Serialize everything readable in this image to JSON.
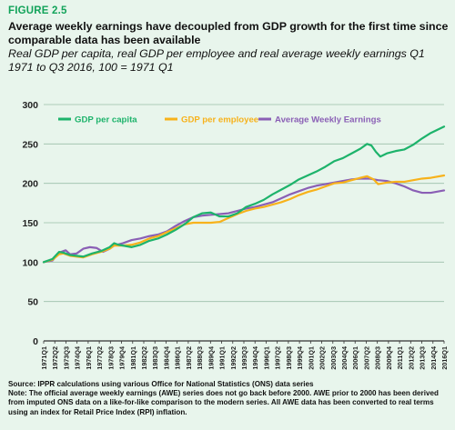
{
  "header": {
    "figure_label": "FIGURE 2.5",
    "title": "Average weekly earnings have decoupled from GDP growth for the first time since comparable data has been available",
    "subtitle": "Real GDP per capita, real GDP per employee and real average weekly earnings Q1 1971 to Q3 2016, 100 = 1971 Q1"
  },
  "footer": {
    "source": "Source: IPPR calculations using various Office for National Statistics (ONS) data series",
    "note": "Note: The official average weekly earnings (AWE) series does not go back before 2000. AWE prior to 2000 has been derived from imputed ONS data on a like-for-like comparison to the modern series. All AWE data has been converted to real terms using an index for Retail Price Index (RPI) inflation."
  },
  "colors": {
    "gdp_per_capita": "#1db36b",
    "gdp_per_employee": "#f7b21b",
    "awe": "#8a5fb5",
    "grid": "#9bbfa9"
  },
  "chart_data": {
    "type": "line",
    "title": "",
    "xlabel": "",
    "ylabel": "",
    "ylim": [
      0,
      300
    ],
    "yticks": [
      0,
      50,
      100,
      150,
      200,
      250,
      300
    ],
    "grid": "horizontal",
    "legend_placement": "top",
    "x_tick_labels": [
      "1971Q1",
      "1972Q2",
      "1973Q3",
      "1974Q4",
      "1976Q1",
      "1977Q2",
      "1978Q3",
      "1979Q4",
      "1981Q1",
      "1982Q2",
      "1983Q3",
      "1984Q4",
      "1986Q1",
      "1987Q2",
      "1988Q3",
      "1989Q4",
      "1991Q1",
      "1992Q2",
      "1993Q3",
      "1994Q4",
      "1996Q1",
      "1997Q2",
      "1998Q3",
      "1999Q4",
      "2001Q1",
      "2002Q2",
      "2003Q3",
      "2004Q4",
      "2006Q1",
      "2007Q2",
      "2008Q3",
      "2009Q4",
      "2011Q1",
      "2012Q2",
      "2013Q3",
      "2014Q4",
      "2016Q1"
    ],
    "series": [
      {
        "name": "GDP  per capita",
        "color_key": "gdp_per_capita",
        "points": [
          [
            1971.0,
            100
          ],
          [
            1972.0,
            104
          ],
          [
            1972.75,
            113
          ],
          [
            1973.25,
            112
          ],
          [
            1974.0,
            109
          ],
          [
            1974.75,
            108
          ],
          [
            1975.5,
            107
          ],
          [
            1976.5,
            111
          ],
          [
            1977.5,
            114
          ],
          [
            1978.5,
            119
          ],
          [
            1979.0,
            124
          ],
          [
            1979.5,
            122
          ],
          [
            1980.0,
            121
          ],
          [
            1981.0,
            119
          ],
          [
            1982.0,
            122
          ],
          [
            1983.0,
            127
          ],
          [
            1984.0,
            130
          ],
          [
            1985.0,
            135
          ],
          [
            1986.0,
            141
          ],
          [
            1987.0,
            148
          ],
          [
            1988.0,
            157
          ],
          [
            1989.0,
            162
          ],
          [
            1990.0,
            163
          ],
          [
            1991.0,
            158
          ],
          [
            1992.0,
            158
          ],
          [
            1993.0,
            162
          ],
          [
            1994.0,
            170
          ],
          [
            1995.0,
            174
          ],
          [
            1996.0,
            179
          ],
          [
            1997.0,
            186
          ],
          [
            1998.0,
            192
          ],
          [
            1999.0,
            198
          ],
          [
            2000.0,
            205
          ],
          [
            2001.0,
            210
          ],
          [
            2002.0,
            215
          ],
          [
            2003.0,
            221
          ],
          [
            2004.0,
            228
          ],
          [
            2005.0,
            232
          ],
          [
            2006.0,
            238
          ],
          [
            2007.0,
            244
          ],
          [
            2007.75,
            250
          ],
          [
            2008.25,
            248
          ],
          [
            2008.75,
            240
          ],
          [
            2009.25,
            234
          ],
          [
            2010.0,
            238
          ],
          [
            2011.0,
            241
          ],
          [
            2012.0,
            243
          ],
          [
            2013.0,
            249
          ],
          [
            2014.0,
            257
          ],
          [
            2015.0,
            264
          ],
          [
            2016.5,
            272
          ]
        ]
      },
      {
        "name": "GDP per employee",
        "color_key": "gdp_per_employee",
        "points": [
          [
            1971.0,
            100
          ],
          [
            1972.0,
            103
          ],
          [
            1972.75,
            110
          ],
          [
            1973.25,
            111
          ],
          [
            1974.0,
            108
          ],
          [
            1974.75,
            107
          ],
          [
            1975.5,
            106
          ],
          [
            1976.5,
            110
          ],
          [
            1977.5,
            113
          ],
          [
            1978.5,
            117
          ],
          [
            1979.0,
            121
          ],
          [
            1980.0,
            121
          ],
          [
            1981.0,
            122
          ],
          [
            1982.0,
            125
          ],
          [
            1983.0,
            130
          ],
          [
            1984.0,
            133
          ],
          [
            1985.0,
            138
          ],
          [
            1986.0,
            143
          ],
          [
            1987.0,
            148
          ],
          [
            1988.0,
            150
          ],
          [
            1989.0,
            150
          ],
          [
            1990.0,
            150
          ],
          [
            1991.0,
            151
          ],
          [
            1992.0,
            156
          ],
          [
            1993.0,
            161
          ],
          [
            1994.0,
            165
          ],
          [
            1995.0,
            168
          ],
          [
            1996.0,
            170
          ],
          [
            1997.0,
            173
          ],
          [
            1998.0,
            176
          ],
          [
            1999.0,
            180
          ],
          [
            2000.0,
            185
          ],
          [
            2001.0,
            189
          ],
          [
            2002.0,
            192
          ],
          [
            2003.0,
            196
          ],
          [
            2004.0,
            200
          ],
          [
            2005.0,
            201
          ],
          [
            2006.0,
            204
          ],
          [
            2007.0,
            207
          ],
          [
            2007.75,
            209
          ],
          [
            2008.5,
            205
          ],
          [
            2009.0,
            199
          ],
          [
            2010.0,
            201
          ],
          [
            2011.0,
            202
          ],
          [
            2012.0,
            202
          ],
          [
            2013.0,
            204
          ],
          [
            2014.0,
            206
          ],
          [
            2015.0,
            207
          ],
          [
            2016.5,
            210
          ]
        ]
      },
      {
        "name": "Average Weekly Earnings",
        "color_key": "awe",
        "points": [
          [
            1971.0,
            100
          ],
          [
            1972.0,
            102
          ],
          [
            1972.75,
            112
          ],
          [
            1973.5,
            115
          ],
          [
            1974.0,
            110
          ],
          [
            1974.75,
            111
          ],
          [
            1975.5,
            117
          ],
          [
            1976.25,
            119
          ],
          [
            1977.0,
            118
          ],
          [
            1977.75,
            113
          ],
          [
            1978.5,
            117
          ],
          [
            1979.0,
            121
          ],
          [
            1980.0,
            124
          ],
          [
            1981.0,
            128
          ],
          [
            1982.0,
            130
          ],
          [
            1983.0,
            133
          ],
          [
            1984.0,
            135
          ],
          [
            1985.0,
            139
          ],
          [
            1986.0,
            146
          ],
          [
            1987.0,
            152
          ],
          [
            1988.0,
            157
          ],
          [
            1989.0,
            159
          ],
          [
            1990.0,
            160
          ],
          [
            1991.0,
            161
          ],
          [
            1992.0,
            162
          ],
          [
            1993.0,
            165
          ],
          [
            1994.0,
            168
          ],
          [
            1995.0,
            170
          ],
          [
            1996.0,
            173
          ],
          [
            1997.0,
            176
          ],
          [
            1998.0,
            181
          ],
          [
            1999.0,
            186
          ],
          [
            2000.0,
            190
          ],
          [
            2001.0,
            194
          ],
          [
            2002.0,
            197
          ],
          [
            2003.0,
            199
          ],
          [
            2004.0,
            201
          ],
          [
            2005.0,
            203
          ],
          [
            2006.0,
            205
          ],
          [
            2007.0,
            206
          ],
          [
            2008.0,
            206
          ],
          [
            2009.0,
            204
          ],
          [
            2010.0,
            203
          ],
          [
            2011.0,
            200
          ],
          [
            2012.0,
            196
          ],
          [
            2013.0,
            191
          ],
          [
            2014.0,
            188
          ],
          [
            2015.0,
            188
          ],
          [
            2016.5,
            191
          ]
        ]
      }
    ]
  }
}
